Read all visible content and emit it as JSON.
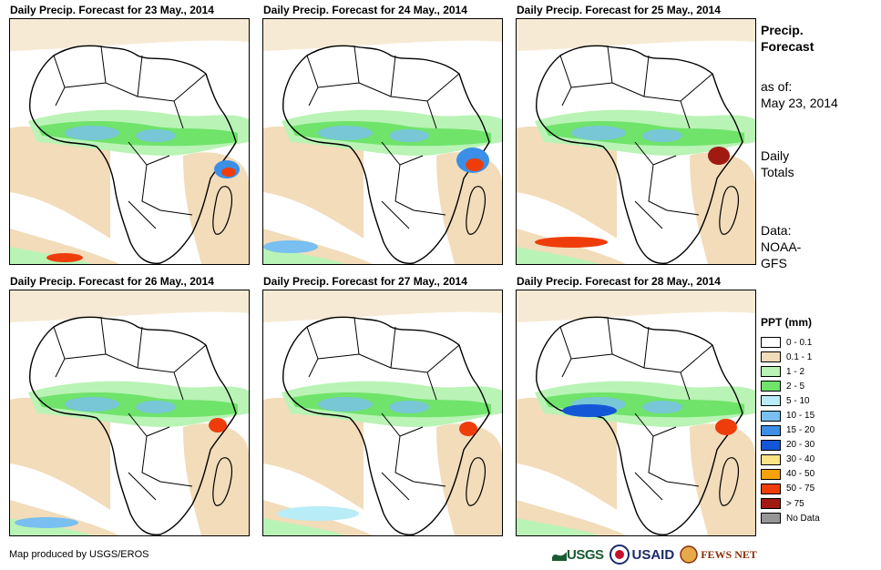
{
  "panels": [
    {
      "title": "Daily Precip. Forecast for 23 May., 2014"
    },
    {
      "title": "Daily Precip. Forecast for 24 May., 2014"
    },
    {
      "title": "Daily Precip. Forecast for 25 May., 2014"
    },
    {
      "title": "Daily Precip. Forecast for 26 May., 2014"
    },
    {
      "title": "Daily Precip. Forecast for 27 May., 2014"
    },
    {
      "title": "Daily Precip. Forecast for 28 May., 2014"
    }
  ],
  "side": {
    "title_line1": "Precip.",
    "title_line2": "Forecast",
    "asof_label": "as of:",
    "asof_date": "May 23, 2014",
    "totals_line1": "Daily",
    "totals_line2": "Totals",
    "data_line1": "Data:",
    "data_line2": "NOAA-",
    "data_line3": "GFS"
  },
  "legend": {
    "title": "PPT (mm)",
    "items": [
      {
        "label": "0 - 0.1",
        "color": "#ffffff"
      },
      {
        "label": "0.1 - 1",
        "color": "#f2dcb9"
      },
      {
        "label": "1 - 2",
        "color": "#b9f3b5"
      },
      {
        "label": "2 - 5",
        "color": "#6fe36a"
      },
      {
        "label": "5 - 10",
        "color": "#b8ecf7"
      },
      {
        "label": "10 - 15",
        "color": "#79bff1"
      },
      {
        "label": "15 - 20",
        "color": "#3c8fe6"
      },
      {
        "label": "20 - 30",
        "color": "#1457d6"
      },
      {
        "label": "30 - 40",
        "color": "#fbe386"
      },
      {
        "label": "40 - 50",
        "color": "#f7a20b"
      },
      {
        "label": "50 - 75",
        "color": "#ee3d0b"
      },
      {
        "label": "> 75",
        "color": "#a11a12"
      },
      {
        "label": "No Data",
        "color": "#969696"
      }
    ]
  },
  "footer": {
    "credit": "Map produced by USGS/EROS",
    "usgs": "USGS",
    "usaid": "USAID",
    "fews": "FEWS NET"
  }
}
